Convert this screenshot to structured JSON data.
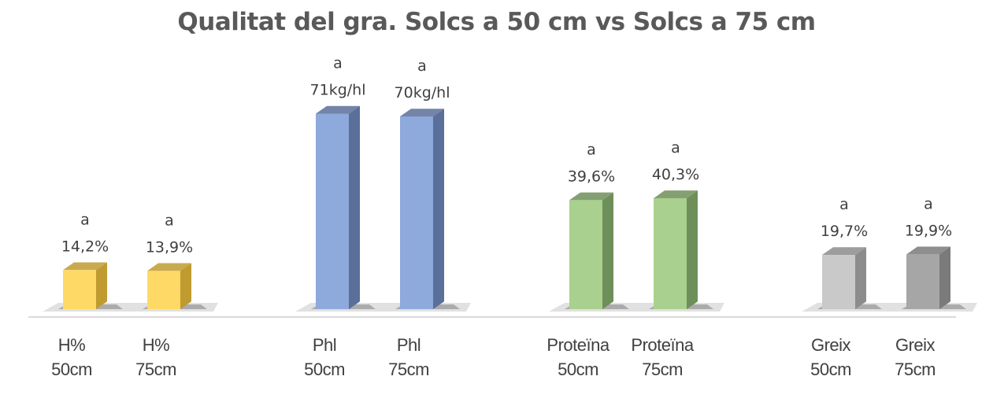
{
  "chart_data": {
    "type": "bar",
    "title": "Qualitat del gra. Solcs a 50 cm vs Solcs a 75 cm",
    "xlabel": "",
    "ylabel": "",
    "grid": false,
    "legend": "none",
    "bars": [
      {
        "category": [
          "H%",
          "50cm"
        ],
        "value": 14.2,
        "label": "14,2%",
        "significance": "a",
        "color": "#FFD966",
        "side_color": "#BF9B30"
      },
      {
        "category": [
          "H%",
          "75cm"
        ],
        "value": 13.9,
        "label": "13,9%",
        "significance": "a",
        "color": "#FFD966",
        "side_color": "#BF9B30"
      },
      {
        "category": [
          "Phl",
          "50cm"
        ],
        "value": 71,
        "label": "71kg/hl",
        "significance": "a",
        "color": "#8EA9DB",
        "side_color": "#5A6F99"
      },
      {
        "category": [
          "Phl",
          "75cm"
        ],
        "value": 70,
        "label": "70kg/hl",
        "significance": "a",
        "color": "#8EA9DB",
        "side_color": "#5A6F99"
      },
      {
        "category": [
          "Proteïna",
          "50cm"
        ],
        "value": 39.6,
        "label": "39,6%",
        "significance": "a",
        "color": "#A9D08E",
        "side_color": "#6F8F5A"
      },
      {
        "category": [
          "Proteïna",
          "75cm"
        ],
        "value": 40.3,
        "label": "40,3%",
        "significance": "a",
        "color": "#A9D08E",
        "side_color": "#6F8F5A"
      },
      {
        "category": [
          "Greix",
          "50cm"
        ],
        "value": 19.7,
        "label": "19,7%",
        "significance": "a",
        "color": "#C9C9C9",
        "side_color": "#8C8C8C"
      },
      {
        "category": [
          "Greix",
          "75cm"
        ],
        "value": 19.9,
        "label": "19,9%",
        "significance": "a",
        "color": "#A6A6A6",
        "side_color": "#7A7A7A"
      }
    ]
  }
}
